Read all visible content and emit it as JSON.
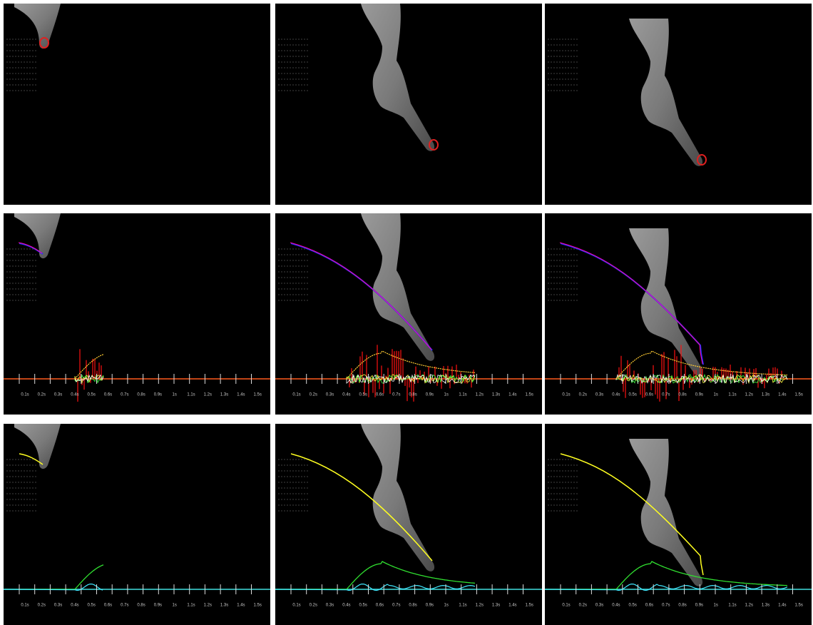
{
  "time_labels": [
    "0.1s",
    "0.2s",
    "0.3s",
    "0.4s",
    "0.5s",
    "0.6s",
    "0.7s",
    "0.8s",
    "0.9s",
    "1s",
    "1.1s",
    "1.2s",
    "1.3s",
    "1.4s",
    "1.5s"
  ]
}
